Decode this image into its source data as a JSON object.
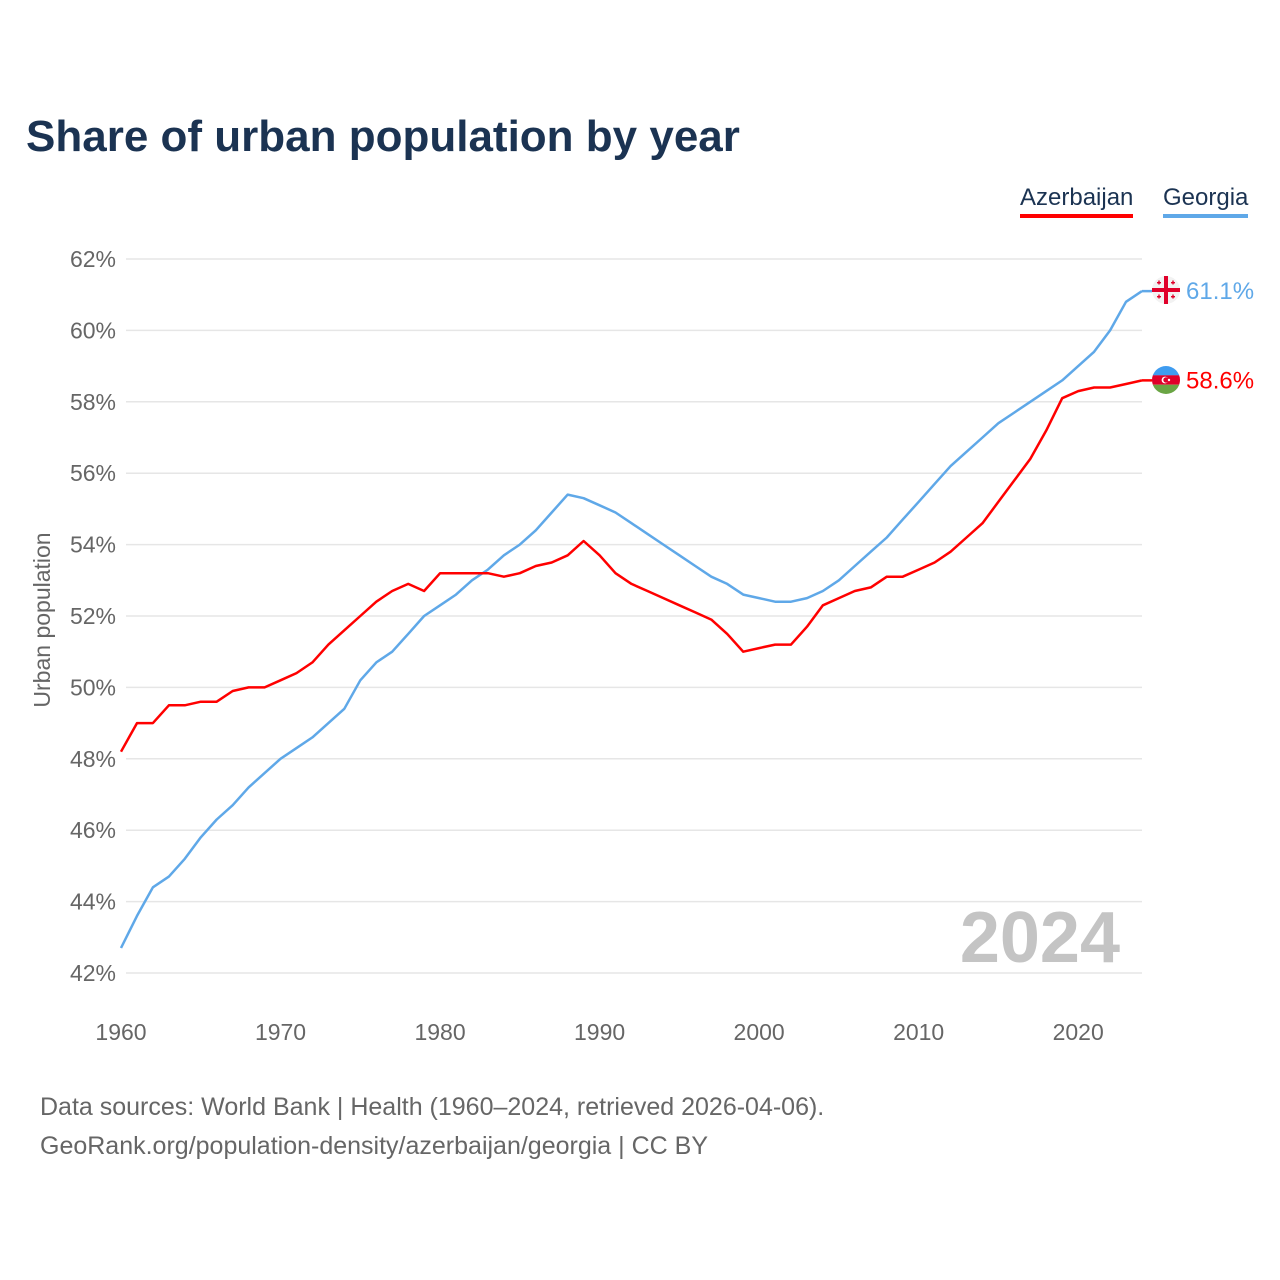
{
  "chart_data": {
    "type": "line",
    "title": "Share of urban population by year",
    "xlabel": "",
    "ylabel": "Urban population",
    "ylim": [
      42,
      62
    ],
    "xlim": [
      1960,
      2024
    ],
    "yticks": [
      "42%",
      "44%",
      "46%",
      "48%",
      "50%",
      "52%",
      "54%",
      "56%",
      "58%",
      "60%",
      "62%"
    ],
    "xticks": [
      "1960",
      "1970",
      "1980",
      "1990",
      "2000",
      "2010",
      "2020"
    ],
    "grid": true,
    "legend_position": "top-right",
    "watermark_year": "2024",
    "x": [
      1960,
      1961,
      1962,
      1963,
      1964,
      1965,
      1966,
      1967,
      1968,
      1969,
      1970,
      1971,
      1972,
      1973,
      1974,
      1975,
      1976,
      1977,
      1978,
      1979,
      1980,
      1981,
      1982,
      1983,
      1984,
      1985,
      1986,
      1987,
      1988,
      1989,
      1990,
      1991,
      1992,
      1993,
      1994,
      1995,
      1996,
      1997,
      1998,
      1999,
      2000,
      2001,
      2002,
      2003,
      2004,
      2005,
      2006,
      2007,
      2008,
      2009,
      2010,
      2011,
      2012,
      2013,
      2014,
      2015,
      2016,
      2017,
      2018,
      2019,
      2020,
      2021,
      2022,
      2023,
      2024
    ],
    "series": [
      {
        "name": "Azerbaijan",
        "color": "#ff0000",
        "end_label": "58.6%",
        "values": [
          48.2,
          49.0,
          49.0,
          49.5,
          49.5,
          49.6,
          49.6,
          49.9,
          50.0,
          50.0,
          50.2,
          50.4,
          50.7,
          51.2,
          51.6,
          52.0,
          52.4,
          52.7,
          52.9,
          52.7,
          53.2,
          53.2,
          53.2,
          53.2,
          53.1,
          53.2,
          53.4,
          53.5,
          53.7,
          54.1,
          53.7,
          53.2,
          52.9,
          52.7,
          52.5,
          52.3,
          52.1,
          51.9,
          51.5,
          51.0,
          51.1,
          51.2,
          51.2,
          51.7,
          52.3,
          52.5,
          52.7,
          52.8,
          53.1,
          53.1,
          53.3,
          53.5,
          53.8,
          54.2,
          54.6,
          55.2,
          55.8,
          56.4,
          57.2,
          58.1,
          58.3,
          58.4,
          58.4,
          58.5,
          58.6
        ]
      },
      {
        "name": "Georgia",
        "color": "#5fa8e8",
        "end_label": "61.1%",
        "values": [
          42.7,
          43.6,
          44.4,
          44.7,
          45.2,
          45.8,
          46.3,
          46.7,
          47.2,
          47.6,
          48.0,
          48.3,
          48.6,
          49.0,
          49.4,
          50.2,
          50.7,
          51.0,
          51.5,
          52.0,
          52.3,
          52.6,
          53.0,
          53.3,
          53.7,
          54.0,
          54.4,
          54.9,
          55.4,
          55.3,
          55.1,
          54.9,
          54.6,
          54.3,
          54.0,
          53.7,
          53.4,
          53.1,
          52.9,
          52.6,
          52.5,
          52.4,
          52.4,
          52.5,
          52.7,
          53.0,
          53.4,
          53.8,
          54.2,
          54.7,
          55.2,
          55.7,
          56.2,
          56.6,
          57.0,
          57.4,
          57.7,
          58.0,
          58.3,
          58.6,
          59.0,
          59.4,
          60.0,
          60.8,
          61.1
        ]
      }
    ]
  },
  "source": {
    "line1": "Data sources: World Bank | Health (1960–2024, retrieved 2026-04-06).",
    "line2": "GeoRank.org/population-density/azerbaijan/georgia | CC BY"
  }
}
